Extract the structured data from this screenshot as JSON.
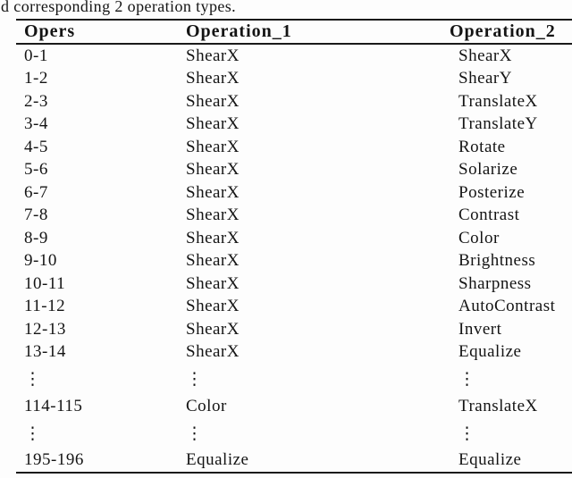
{
  "caption_fragment": "d corresponding 2 operation types.",
  "table": {
    "columns": [
      "Opers",
      "Operation_1",
      "Operation_2"
    ],
    "ellipsis": "⋮",
    "rows": [
      [
        "0-1",
        "ShearX",
        "ShearX"
      ],
      [
        "1-2",
        "ShearX",
        "ShearY"
      ],
      [
        "2-3",
        "ShearX",
        "TranslateX"
      ],
      [
        "3-4",
        "ShearX",
        "TranslateY"
      ],
      [
        "4-5",
        "ShearX",
        "Rotate"
      ],
      [
        "5-6",
        "ShearX",
        "Solarize"
      ],
      [
        "6-7",
        "ShearX",
        "Posterize"
      ],
      [
        "7-8",
        "ShearX",
        "Contrast"
      ],
      [
        "8-9",
        "ShearX",
        "Color"
      ],
      [
        "9-10",
        "ShearX",
        "Brightness"
      ],
      [
        "10-11",
        "ShearX",
        "Sharpness"
      ],
      [
        "11-12",
        "ShearX",
        "AutoContrast"
      ],
      [
        "12-13",
        "ShearX",
        "Invert"
      ],
      [
        "13-14",
        "ShearX",
        "Equalize"
      ],
      [
        "⋮",
        "⋮",
        "⋮"
      ],
      [
        "114-115",
        "Color",
        "TranslateX"
      ],
      [
        "⋮",
        "⋮",
        "⋮"
      ],
      [
        "195-196",
        "Equalize",
        "Equalize"
      ]
    ]
  },
  "colors": {
    "background": "#fdfdfd",
    "text": "#141414",
    "rule": "#1a1a1a"
  }
}
